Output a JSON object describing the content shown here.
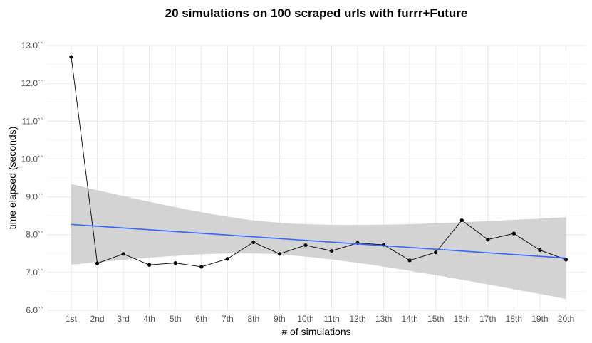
{
  "chart_data": {
    "type": "line",
    "title": "20 simulations on 100 scraped urls with furrr+Future",
    "xlabel": "# of simulations",
    "ylabel": "time elapsed (seconds)",
    "categories": [
      "1st",
      "2nd",
      "3rd",
      "4th",
      "5th",
      "6th",
      "7th",
      "8th",
      "9th",
      "10th",
      "11th",
      "12th",
      "13th",
      "14th",
      "15th",
      "16th",
      "17th",
      "18th",
      "19th",
      "20th"
    ],
    "ylim": [
      6.0,
      13.0
    ],
    "yticks": [
      {
        "value": 6.0,
        "label": "6.0``"
      },
      {
        "value": 7.0,
        "label": "7.0``"
      },
      {
        "value": 8.0,
        "label": "8.0``"
      },
      {
        "value": 9.0,
        "label": "9.0``"
      },
      {
        "value": 10.0,
        "label": "10.0``"
      },
      {
        "value": 11.0,
        "label": "11.0``"
      },
      {
        "value": 12.0,
        "label": "12.0``"
      },
      {
        "value": 13.0,
        "label": "13.0``"
      }
    ],
    "series": [
      {
        "values": [
          12.7,
          7.24,
          7.49,
          7.2,
          7.25,
          7.15,
          7.36,
          7.8,
          7.49,
          7.72,
          7.57,
          7.78,
          7.73,
          7.32,
          7.53,
          8.38,
          7.87,
          8.03,
          7.59,
          7.34
        ],
        "color": "#000000",
        "marker": "point"
      }
    ],
    "trend": {
      "method": "linear fit with confidence band",
      "start": 8.27,
      "end": 7.38,
      "band_lower_start": 7.21,
      "band_upper_start": 9.34,
      "band_lower_end": 6.3,
      "band_upper_end": 8.46,
      "line_color": "#3366ff",
      "band_color": "#d3d3d3"
    },
    "grid": true,
    "legend": "none"
  }
}
